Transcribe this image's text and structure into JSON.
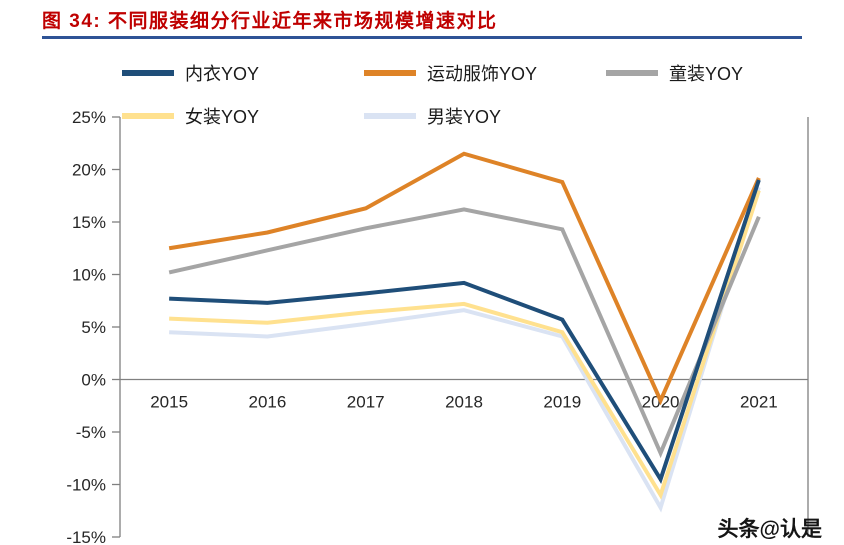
{
  "header": {
    "title": "图 34:  不同服装细分行业近年来市场规模增速对比",
    "title_color": "#BF0000",
    "rule_color": "#2E5396"
  },
  "chart_data": {
    "type": "line",
    "title": "不同服装细分行业近年来市场规模增速对比",
    "categories": [
      "2015",
      "2016",
      "2017",
      "2018",
      "2019",
      "2020",
      "2021"
    ],
    "series": [
      {
        "name": "内衣YOY",
        "color": "#1F4E79",
        "values": [
          7.7,
          7.3,
          8.2,
          9.2,
          5.7,
          -9.5,
          19.0
        ]
      },
      {
        "name": "运动服饰YOY",
        "color": "#DE8327",
        "values": [
          12.5,
          14.0,
          16.3,
          21.5,
          18.8,
          -2.0,
          19.2
        ]
      },
      {
        "name": "童装YOY",
        "color": "#A5A5A5",
        "values": [
          10.2,
          12.3,
          14.4,
          16.2,
          14.3,
          -7.0,
          15.5
        ]
      },
      {
        "name": "女装YOY",
        "color": "#FFE18F",
        "values": [
          5.8,
          5.4,
          6.4,
          7.2,
          4.5,
          -11.0,
          18.0
        ]
      },
      {
        "name": "男装YOY",
        "color": "#DAE3F3",
        "values": [
          4.5,
          4.1,
          5.3,
          6.6,
          4.1,
          -12.2,
          18.3
        ]
      }
    ],
    "xlabel": "",
    "ylabel": "",
    "ylim": [
      -15,
      25
    ],
    "yticks": [
      25,
      20,
      15,
      10,
      5,
      0,
      -5,
      -10,
      -15
    ],
    "ytick_suffix": "%",
    "grid": false,
    "legend_position": "top-left"
  },
  "axis": {
    "color": "#808080",
    "label_color": "#262626"
  },
  "watermark": {
    "text": "头条@认是"
  }
}
